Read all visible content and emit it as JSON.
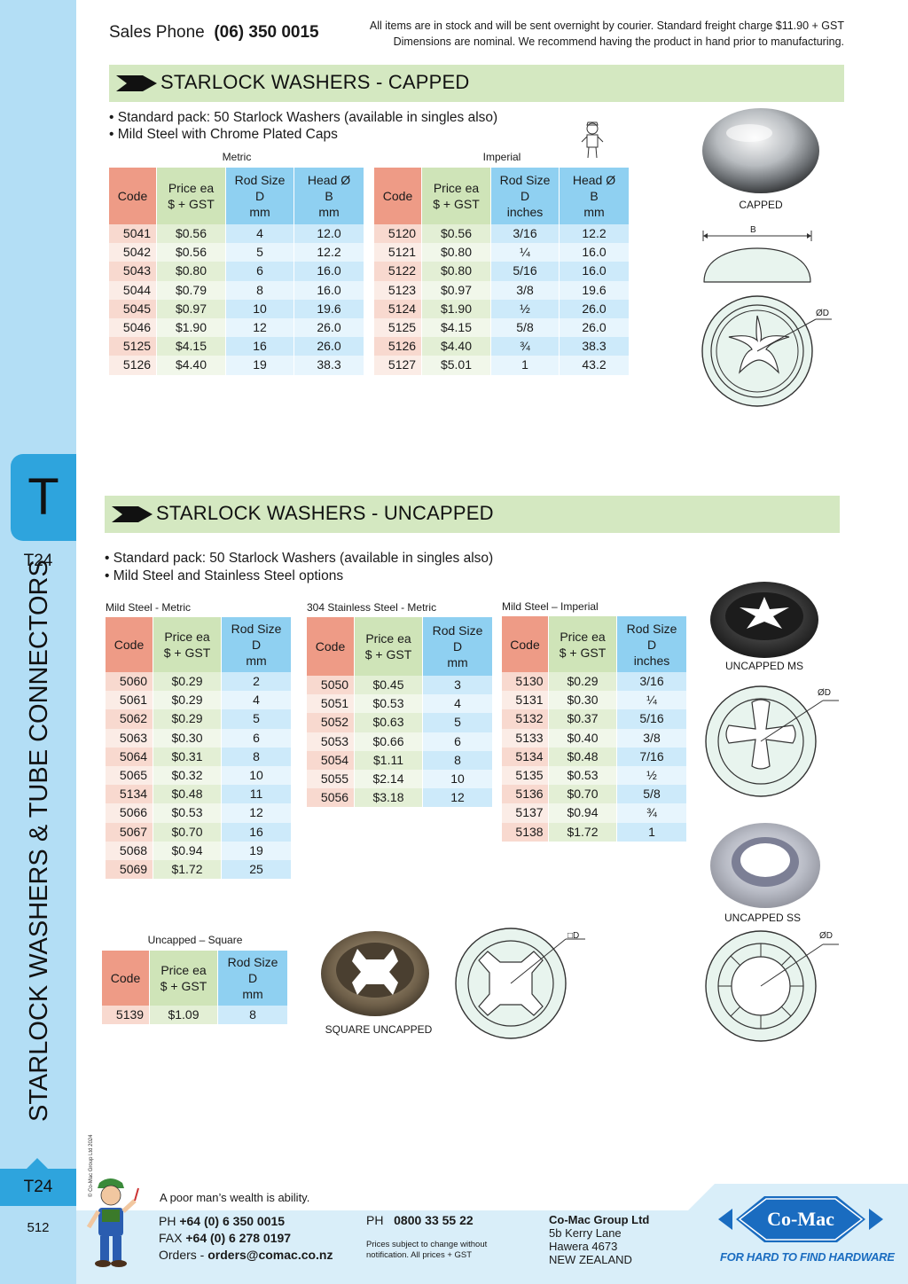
{
  "sidebar": {
    "tab_letter": "T",
    "tab_code": "T24",
    "vertical_title": "STARLOCK WASHERS & TUBE CONNECTORS",
    "copyright": "© Co-Mac Group Ltd 2024",
    "bottom_code": "T24",
    "page_number": "512",
    "colors": {
      "light": "#b3def5",
      "accent": "#2ea4dd"
    }
  },
  "header": {
    "sales_label": "Sales Phone",
    "sales_phone": "(06) 350 0015",
    "note_line1": "All items are in stock and will be sent overnight by courier. Standard freight charge $11.90 + GST",
    "note_line2": "Dimensions are nominal. We recommend having the product in hand prior to manufacturing."
  },
  "capped": {
    "title": "STARLOCK WASHERS - CAPPED",
    "bullets": [
      "• Standard pack: 50 Starlock Washers (available in singles also)",
      "• Mild Steel with Chrome Plated Caps"
    ],
    "metric": {
      "caption": "Metric",
      "headers": {
        "code": "Code",
        "price": [
          "Price ea",
          "$ + GST"
        ],
        "rod": [
          "Rod Size",
          "D",
          "mm"
        ],
        "head": [
          "Head Ø",
          "B",
          "mm"
        ]
      },
      "rows": [
        [
          "5041",
          "$0.56",
          "4",
          "12.0"
        ],
        [
          "5042",
          "$0.56",
          "5",
          "12.2"
        ],
        [
          "5043",
          "$0.80",
          "6",
          "16.0"
        ],
        [
          "5044",
          "$0.79",
          "8",
          "16.0"
        ],
        [
          "5045",
          "$0.97",
          "10",
          "19.6"
        ],
        [
          "5046",
          "$1.90",
          "12",
          "26.0"
        ],
        [
          "5125",
          "$4.15",
          "16",
          "26.0"
        ],
        [
          "5126",
          "$4.40",
          "19",
          "38.3"
        ]
      ]
    },
    "imperial": {
      "caption": "Imperial",
      "headers": {
        "code": "Code",
        "price": [
          "Price ea",
          "$ + GST"
        ],
        "rod": [
          "Rod Size",
          "D",
          "inches"
        ],
        "head": [
          "Head Ø",
          "B",
          "mm"
        ]
      },
      "rows": [
        [
          "5120",
          "$0.56",
          "3/16",
          "12.2"
        ],
        [
          "5121",
          "$0.80",
          "¼",
          "16.0"
        ],
        [
          "5122",
          "$0.80",
          "5/16",
          "16.0"
        ],
        [
          "5123",
          "$0.97",
          "3/8",
          "19.6"
        ],
        [
          "5124",
          "$1.90",
          "½",
          "26.0"
        ],
        [
          "5125",
          "$4.15",
          "5/8",
          "26.0"
        ],
        [
          "5126",
          "$4.40",
          "¾",
          "38.3"
        ],
        [
          "5127",
          "$5.01",
          "1",
          "43.2"
        ]
      ]
    },
    "image_caption": "CAPPED",
    "dim_b": "B",
    "dim_d": "ØD"
  },
  "uncapped": {
    "title": "STARLOCK WASHERS - UNCAPPED",
    "bullets": [
      "• Standard pack: 50 Starlock Washers (available in singles also)",
      "• Mild Steel and Stainless Steel options"
    ],
    "ms_metric": {
      "caption": "Mild Steel - Metric",
      "headers": {
        "code": "Code",
        "price": [
          "Price ea",
          "$ + GST"
        ],
        "rod": [
          "Rod Size",
          "D",
          "mm"
        ]
      },
      "rows": [
        [
          "5060",
          "$0.29",
          "2"
        ],
        [
          "5061",
          "$0.29",
          "4"
        ],
        [
          "5062",
          "$0.29",
          "5"
        ],
        [
          "5063",
          "$0.30",
          "6"
        ],
        [
          "5064",
          "$0.31",
          "8"
        ],
        [
          "5065",
          "$0.32",
          "10"
        ],
        [
          "5134",
          "$0.48",
          "11"
        ],
        [
          "5066",
          "$0.53",
          "12"
        ],
        [
          "5067",
          "$0.70",
          "16"
        ],
        [
          "5068",
          "$0.94",
          "19"
        ],
        [
          "5069",
          "$1.72",
          "25"
        ]
      ]
    },
    "ss_metric": {
      "caption": "304 Stainless Steel - Metric",
      "headers": {
        "code": "Code",
        "price": [
          "Price ea",
          "$ + GST"
        ],
        "rod": [
          "Rod Size",
          "D",
          "mm"
        ]
      },
      "rows": [
        [
          "5050",
          "$0.45",
          "3"
        ],
        [
          "5051",
          "$0.53",
          "4"
        ],
        [
          "5052",
          "$0.63",
          "5"
        ],
        [
          "5053",
          "$0.66",
          "6"
        ],
        [
          "5054",
          "$1.11",
          "8"
        ],
        [
          "5055",
          "$2.14",
          "10"
        ],
        [
          "5056",
          "$3.18",
          "12"
        ]
      ]
    },
    "ms_imperial": {
      "caption": "Mild Steel – Imperial",
      "headers": {
        "code": "Code",
        "price": [
          "Price ea",
          "$ + GST"
        ],
        "rod": [
          "Rod Size",
          "D",
          "inches"
        ]
      },
      "rows": [
        [
          "5130",
          "$0.29",
          "3/16"
        ],
        [
          "5131",
          "$0.30",
          "¼"
        ],
        [
          "5132",
          "$0.37",
          "5/16"
        ],
        [
          "5133",
          "$0.40",
          "3/8"
        ],
        [
          "5134",
          "$0.48",
          "7/16"
        ],
        [
          "5135",
          "$0.53",
          "½"
        ],
        [
          "5136",
          "$0.70",
          "5/8"
        ],
        [
          "5137",
          "$0.94",
          "¾"
        ],
        [
          "5138",
          "$1.72",
          "1"
        ]
      ]
    },
    "square": {
      "caption": "Uncapped – Square",
      "headers": {
        "code": "Code",
        "price": [
          "Price ea",
          "$ + GST"
        ],
        "rod": [
          "Rod Size",
          "D",
          "mm"
        ]
      },
      "rows": [
        [
          "5139",
          "$1.09",
          "8"
        ]
      ]
    },
    "cap_ms": "UNCAPPED MS",
    "cap_ss": "UNCAPPED SS",
    "cap_square": "SQUARE UNCAPPED",
    "dim_d": "ØD",
    "dim_sq": "□D"
  },
  "footer": {
    "motto": "A poor man’s wealth is ability.",
    "ph_label": "PH",
    "ph": "+64 (0) 6 350 0015",
    "fax_label": "FAX",
    "fax": "+64 (0) 6 278 0197",
    "orders_label": "Orders -",
    "orders": "orders@comac.co.nz",
    "ph2_label": "PH",
    "ph2": "0800 33 55 22",
    "small_print": "Prices subject to change without notification. All prices + GST",
    "company": "Co-Mac Group Ltd",
    "addr1": "5b Kerry Lane",
    "addr2": "Hawera 4673",
    "addr3": "NEW ZEALAND",
    "logo_text": "Co-Mac",
    "tagline": "FOR HARD TO FIND HARDWARE",
    "colors": {
      "band": "#d9eef9",
      "logo": "#1a6cc0"
    }
  }
}
